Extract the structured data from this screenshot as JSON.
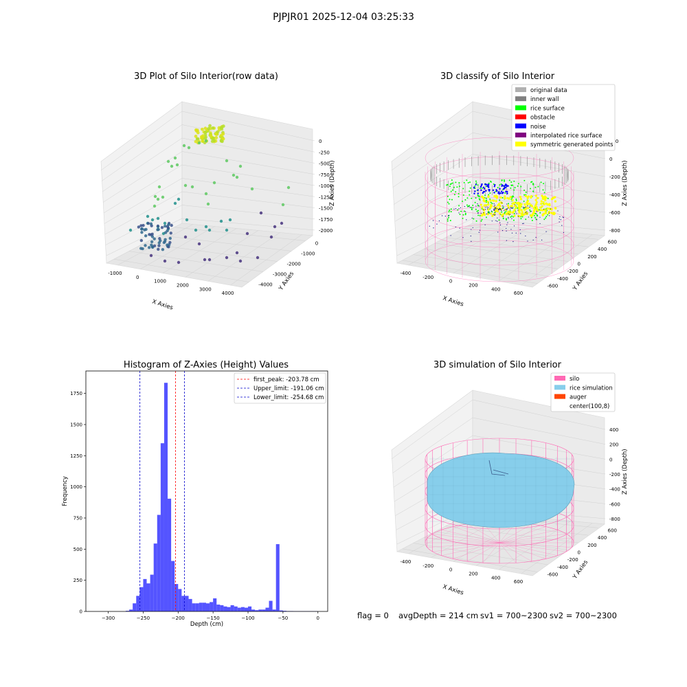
{
  "suptitle": "PJPJR01 2025-12-04 03:25:33",
  "footer": {
    "flag": "flag = 0",
    "avg_depth": "avgDepth = 214 cm",
    "sv1": "sv1 = 700~2300",
    "sv2": "sv2 = 700~2300"
  },
  "colors": {
    "hist_bar": "#4b4bff",
    "first_peak": "#ff0000",
    "limits": "#0000cc",
    "silo": "#ff69b4",
    "rice": "#87ceeb",
    "auger": "#ff4500"
  },
  "chart_data": [
    {
      "type": "scatter",
      "title": "3D Plot of Silo Interior(row data)",
      "projection": "3d",
      "xlabel": "X Axies",
      "ylabel": "Y Axies",
      "zlabel": "Z Axies (Depth)",
      "x_ticks": [
        "-1000",
        "0",
        "1000",
        "2000",
        "3000",
        "4000"
      ],
      "y_ticks": [
        "-4000",
        "-3000",
        "-2000",
        "-1000",
        "0"
      ],
      "z_ticks": [
        "0",
        "-250",
        "-500",
        "-750",
        "-1000",
        "-1250",
        "-1500",
        "-1750",
        "-2000"
      ],
      "colormap": "viridis"
    },
    {
      "type": "scatter",
      "title": "3D classify of Silo Interior",
      "projection": "3d",
      "xlabel": "X Axies",
      "ylabel": "Y Axies",
      "zlabel": "Z Axies (Depth)",
      "x_ticks": [
        "-400",
        "-200",
        "0",
        "200",
        "400",
        "600"
      ],
      "y_ticks": [
        "-600",
        "-400",
        "-200",
        "0",
        "200",
        "400",
        "600"
      ],
      "z_ticks": [
        "200",
        "0",
        "-200",
        "-400",
        "-600",
        "-800"
      ],
      "legend_position": "top-right",
      "legend": [
        {
          "label": "original data",
          "color": "#b0b0b0"
        },
        {
          "label": "inner wall",
          "color": "#808080"
        },
        {
          "label": "rice surface",
          "color": "#00ff00"
        },
        {
          "label": "obstacle",
          "color": "#ff0000"
        },
        {
          "label": "noise",
          "color": "#0000ff"
        },
        {
          "label": "interpolated rice surface",
          "color": "#800080"
        },
        {
          "label": "symmetric generated points",
          "color": "#ffff00"
        }
      ]
    },
    {
      "type": "bar",
      "title": "Histogram of Z-Axies (Height) Values",
      "xlabel": "Depth (cm)",
      "ylabel": "Frequency",
      "xlim": [
        -332,
        14
      ],
      "ylim": [
        0,
        1930
      ],
      "x_ticks": [
        -300,
        -250,
        -200,
        -150,
        -100,
        -50,
        0
      ],
      "y_ticks": [
        0,
        250,
        500,
        750,
        1000,
        1250,
        1500,
        1750
      ],
      "bin_width": 5,
      "bins_start": [
        -275,
        -270,
        -265,
        -260,
        -255,
        -250,
        -245,
        -240,
        -235,
        -230,
        -225,
        -220,
        -215,
        -210,
        -205,
        -200,
        -195,
        -190,
        -185,
        -180,
        -175,
        -170,
        -165,
        -160,
        -155,
        -150,
        -145,
        -140,
        -135,
        -130,
        -125,
        -120,
        -115,
        -110,
        -105,
        -100,
        -95,
        -90,
        -85,
        -80,
        -75,
        -70,
        -65,
        -60,
        -55,
        -50,
        -45,
        -40,
        -35,
        -30,
        -25,
        -20,
        -15,
        -10,
        -5
      ],
      "values": [
        5,
        15,
        65,
        125,
        195,
        260,
        225,
        295,
        545,
        775,
        1350,
        1835,
        905,
        405,
        220,
        180,
        125,
        125,
        100,
        65,
        65,
        70,
        70,
        65,
        75,
        105,
        55,
        50,
        40,
        35,
        50,
        40,
        30,
        35,
        30,
        40,
        15,
        10,
        15,
        15,
        30,
        85,
        15,
        540,
        8,
        5,
        3,
        3,
        2,
        2,
        2,
        2,
        2,
        2,
        2
      ],
      "lines": [
        {
          "label": "first_peak: -203.78 cm",
          "x": -203.78,
          "color": "#ff0000"
        },
        {
          "label": "Upper_limit: -191.06 cm",
          "x": -191.06,
          "color": "#0000cc"
        },
        {
          "label": "Lower_limit: -254.68 cm",
          "x": -254.68,
          "color": "#0000cc"
        }
      ],
      "legend_position": "top-right"
    },
    {
      "type": "surface",
      "title": "3D simulation of Silo Interior",
      "projection": "3d",
      "xlabel": "X Axies",
      "ylabel": "Y Axies",
      "zlabel": "Z Axies (Depth)",
      "x_ticks": [
        "-400",
        "-200",
        "0",
        "200",
        "400",
        "600"
      ],
      "y_ticks": [
        "-600",
        "-400",
        "-200",
        "0",
        "200",
        "400",
        "600"
      ],
      "z_ticks": [
        "400",
        "200",
        "0",
        "-200",
        "-400",
        "-600",
        "-800"
      ],
      "legend_position": "top-right",
      "legend": [
        {
          "label": "silo",
          "color": "#ff69b4"
        },
        {
          "label": "rice simulation",
          "color": "#87ceeb"
        },
        {
          "label": "auger",
          "color": "#ff4500"
        },
        {
          "label": "center(100,8)",
          "color": "none"
        }
      ]
    }
  ]
}
